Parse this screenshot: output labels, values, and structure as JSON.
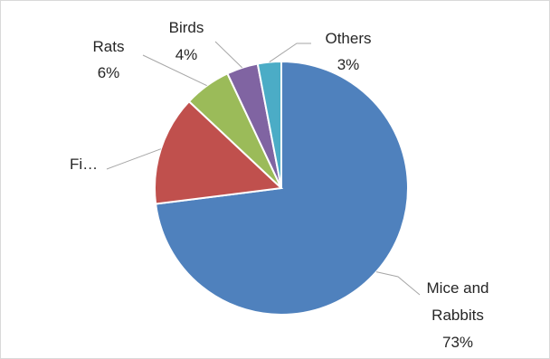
{
  "chart_data": {
    "type": "pie",
    "title": "",
    "legend": "none",
    "slices": [
      {
        "label": "Mice and Rabbits",
        "label_lines": [
          "Mice and",
          "Rabbits"
        ],
        "percent_text": "73%",
        "value": 73,
        "color": "#4f81bd"
      },
      {
        "label": "Fi…",
        "label_lines": [
          "Fi…"
        ],
        "percent_text": "",
        "value": 14,
        "color": "#c0504d"
      },
      {
        "label": "Rats",
        "label_lines": [
          "Rats"
        ],
        "percent_text": "6%",
        "value": 6,
        "color": "#9bbb59"
      },
      {
        "label": "Birds",
        "label_lines": [
          "Birds"
        ],
        "percent_text": "4%",
        "value": 4,
        "color": "#8064a2"
      },
      {
        "label": "Others",
        "label_lines": [
          "Others"
        ],
        "percent_text": "3%",
        "value": 3,
        "color": "#4bacc6"
      }
    ]
  }
}
